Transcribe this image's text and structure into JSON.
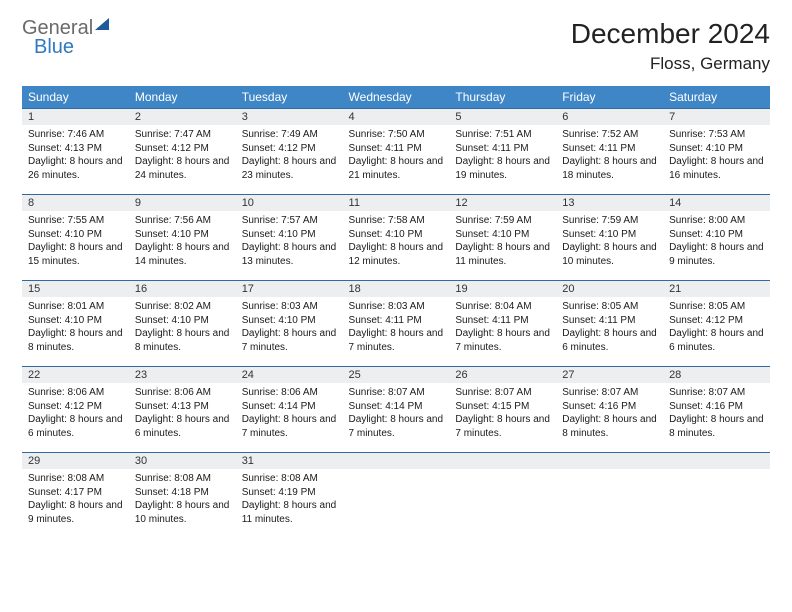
{
  "logo": {
    "word1": "General",
    "word2": "Blue"
  },
  "title": "December 2024",
  "location": "Floss, Germany",
  "colors": {
    "header_bg": "#3f86c7",
    "header_text": "#ffffff",
    "daynum_bg": "#eceef0",
    "daynum_border": "#2f6aa3",
    "body_text": "#1a1a1a",
    "logo_gray": "#6a6a6a",
    "logo_blue": "#2f79c2"
  },
  "weekdays": [
    "Sunday",
    "Monday",
    "Tuesday",
    "Wednesday",
    "Thursday",
    "Friday",
    "Saturday"
  ],
  "weeks": [
    [
      {
        "n": "1",
        "sr": "7:46 AM",
        "ss": "4:13 PM",
        "dl": "8 hours and 26 minutes."
      },
      {
        "n": "2",
        "sr": "7:47 AM",
        "ss": "4:12 PM",
        "dl": "8 hours and 24 minutes."
      },
      {
        "n": "3",
        "sr": "7:49 AM",
        "ss": "4:12 PM",
        "dl": "8 hours and 23 minutes."
      },
      {
        "n": "4",
        "sr": "7:50 AM",
        "ss": "4:11 PM",
        "dl": "8 hours and 21 minutes."
      },
      {
        "n": "5",
        "sr": "7:51 AM",
        "ss": "4:11 PM",
        "dl": "8 hours and 19 minutes."
      },
      {
        "n": "6",
        "sr": "7:52 AM",
        "ss": "4:11 PM",
        "dl": "8 hours and 18 minutes."
      },
      {
        "n": "7",
        "sr": "7:53 AM",
        "ss": "4:10 PM",
        "dl": "8 hours and 16 minutes."
      }
    ],
    [
      {
        "n": "8",
        "sr": "7:55 AM",
        "ss": "4:10 PM",
        "dl": "8 hours and 15 minutes."
      },
      {
        "n": "9",
        "sr": "7:56 AM",
        "ss": "4:10 PM",
        "dl": "8 hours and 14 minutes."
      },
      {
        "n": "10",
        "sr": "7:57 AM",
        "ss": "4:10 PM",
        "dl": "8 hours and 13 minutes."
      },
      {
        "n": "11",
        "sr": "7:58 AM",
        "ss": "4:10 PM",
        "dl": "8 hours and 12 minutes."
      },
      {
        "n": "12",
        "sr": "7:59 AM",
        "ss": "4:10 PM",
        "dl": "8 hours and 11 minutes."
      },
      {
        "n": "13",
        "sr": "7:59 AM",
        "ss": "4:10 PM",
        "dl": "8 hours and 10 minutes."
      },
      {
        "n": "14",
        "sr": "8:00 AM",
        "ss": "4:10 PM",
        "dl": "8 hours and 9 minutes."
      }
    ],
    [
      {
        "n": "15",
        "sr": "8:01 AM",
        "ss": "4:10 PM",
        "dl": "8 hours and 8 minutes."
      },
      {
        "n": "16",
        "sr": "8:02 AM",
        "ss": "4:10 PM",
        "dl": "8 hours and 8 minutes."
      },
      {
        "n": "17",
        "sr": "8:03 AM",
        "ss": "4:10 PM",
        "dl": "8 hours and 7 minutes."
      },
      {
        "n": "18",
        "sr": "8:03 AM",
        "ss": "4:11 PM",
        "dl": "8 hours and 7 minutes."
      },
      {
        "n": "19",
        "sr": "8:04 AM",
        "ss": "4:11 PM",
        "dl": "8 hours and 7 minutes."
      },
      {
        "n": "20",
        "sr": "8:05 AM",
        "ss": "4:11 PM",
        "dl": "8 hours and 6 minutes."
      },
      {
        "n": "21",
        "sr": "8:05 AM",
        "ss": "4:12 PM",
        "dl": "8 hours and 6 minutes."
      }
    ],
    [
      {
        "n": "22",
        "sr": "8:06 AM",
        "ss": "4:12 PM",
        "dl": "8 hours and 6 minutes."
      },
      {
        "n": "23",
        "sr": "8:06 AM",
        "ss": "4:13 PM",
        "dl": "8 hours and 6 minutes."
      },
      {
        "n": "24",
        "sr": "8:06 AM",
        "ss": "4:14 PM",
        "dl": "8 hours and 7 minutes."
      },
      {
        "n": "25",
        "sr": "8:07 AM",
        "ss": "4:14 PM",
        "dl": "8 hours and 7 minutes."
      },
      {
        "n": "26",
        "sr": "8:07 AM",
        "ss": "4:15 PM",
        "dl": "8 hours and 7 minutes."
      },
      {
        "n": "27",
        "sr": "8:07 AM",
        "ss": "4:16 PM",
        "dl": "8 hours and 8 minutes."
      },
      {
        "n": "28",
        "sr": "8:07 AM",
        "ss": "4:16 PM",
        "dl": "8 hours and 8 minutes."
      }
    ],
    [
      {
        "n": "29",
        "sr": "8:08 AM",
        "ss": "4:17 PM",
        "dl": "8 hours and 9 minutes."
      },
      {
        "n": "30",
        "sr": "8:08 AM",
        "ss": "4:18 PM",
        "dl": "8 hours and 10 minutes."
      },
      {
        "n": "31",
        "sr": "8:08 AM",
        "ss": "4:19 PM",
        "dl": "8 hours and 11 minutes."
      },
      null,
      null,
      null,
      null
    ]
  ],
  "labels": {
    "sunrise": "Sunrise:",
    "sunset": "Sunset:",
    "daylight": "Daylight:"
  }
}
